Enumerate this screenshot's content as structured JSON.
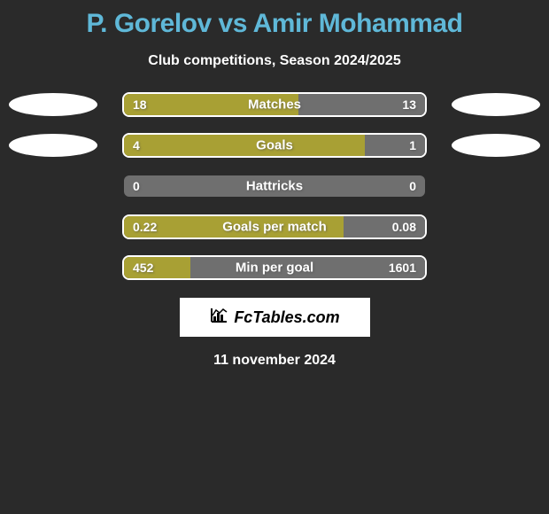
{
  "title_color": "#5fb8d8",
  "player1": "P. Gorelov",
  "player2": "Amir Mohammad",
  "subtitle": "Club competitions, Season 2024/2025",
  "bar_winner_color": "#a8a034",
  "bar_loser_color": "#6f6f6f",
  "bar_neutral_color": "#6f6f6f",
  "stats": [
    {
      "label": "Matches",
      "left_val": "18",
      "right_val": "13",
      "left_pct": 58,
      "color_left": "#a8a034",
      "color_right": "#6f6f6f",
      "oval_left": true,
      "oval_right": true,
      "outline": true
    },
    {
      "label": "Goals",
      "left_val": "4",
      "right_val": "1",
      "left_pct": 80,
      "color_left": "#a8a034",
      "color_right": "#6f6f6f",
      "oval_left": true,
      "oval_right": true,
      "outline": true
    },
    {
      "label": "Hattricks",
      "left_val": "0",
      "right_val": "0",
      "left_pct": 50,
      "color_left": "#6f6f6f",
      "color_right": "#6f6f6f",
      "oval_left": false,
      "oval_right": false,
      "outline": false
    },
    {
      "label": "Goals per match",
      "left_val": "0.22",
      "right_val": "0.08",
      "left_pct": 73,
      "color_left": "#a8a034",
      "color_right": "#6f6f6f",
      "oval_left": false,
      "oval_right": false,
      "outline": true
    },
    {
      "label": "Min per goal",
      "left_val": "452",
      "right_val": "1601",
      "left_pct": 22,
      "color_left": "#a8a034",
      "color_right": "#6f6f6f",
      "oval_left": false,
      "oval_right": false,
      "outline": true
    }
  ],
  "logo_text": "FcTables.com",
  "date_text": "11 november 2024"
}
